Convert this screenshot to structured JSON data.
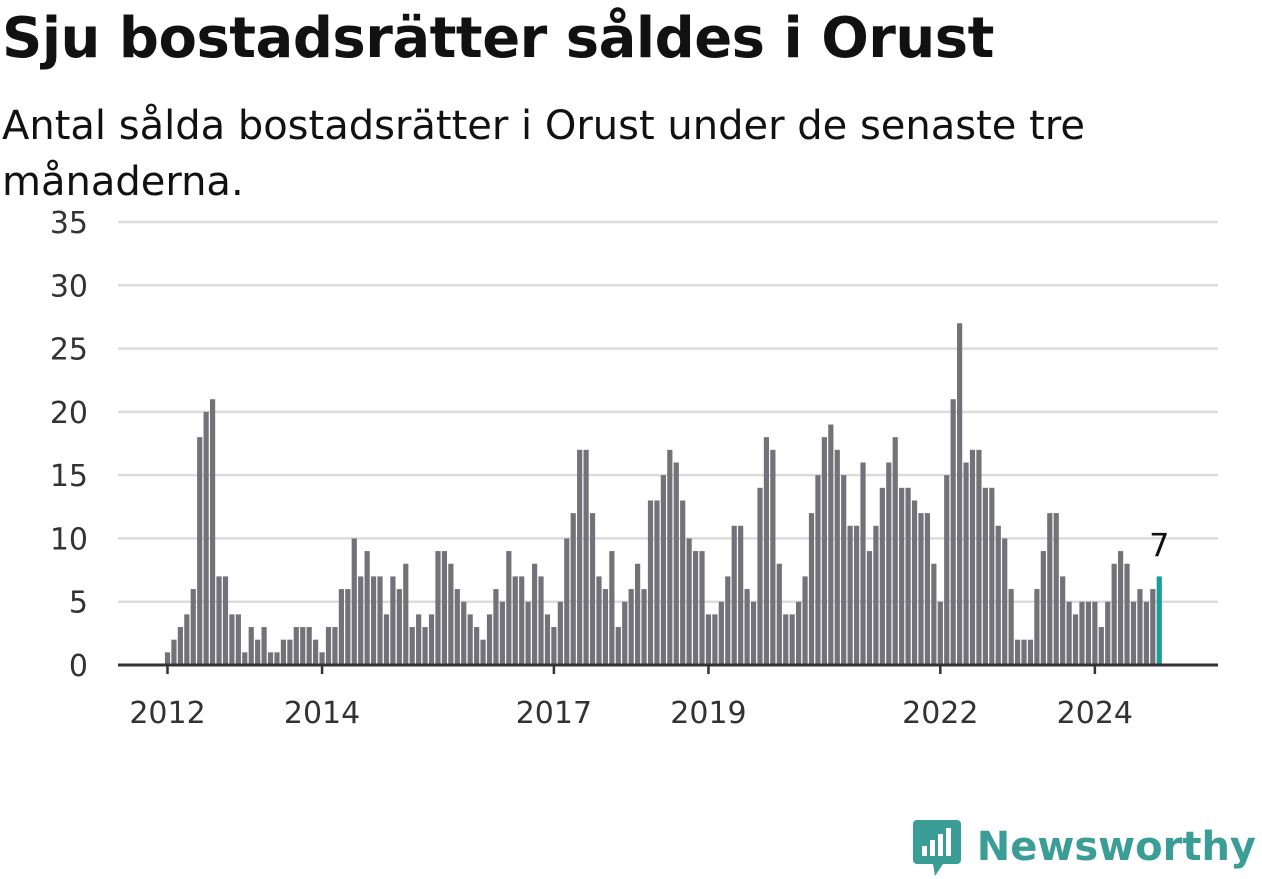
{
  "title": "Sju bostadsrätter såldes i Orust",
  "subtitle": "Antal sålda bostadsrätter i Orust under de senaste tre månaderna.",
  "brand": {
    "name": "Newsworthy",
    "icon": "newsworthy-logo-icon"
  },
  "colors": {
    "bar": "#737278",
    "highlight": "#1a9e96",
    "grid": "#dcdcdc",
    "axis": "#333333",
    "brand": "#3a9d96"
  },
  "chart_data": {
    "type": "bar",
    "start": "2011-10",
    "frequency": "monthly",
    "ylim": [
      0,
      35
    ],
    "yticks": [
      0,
      5,
      10,
      15,
      20,
      25,
      30,
      35
    ],
    "xticks": [
      {
        "label": "2012",
        "date": "2012-01"
      },
      {
        "label": "2014",
        "date": "2014-01"
      },
      {
        "label": "2017",
        "date": "2017-01"
      },
      {
        "label": "2019",
        "date": "2019-01"
      },
      {
        "label": "2022",
        "date": "2022-01"
      },
      {
        "label": "2024",
        "date": "2024-01"
      }
    ],
    "grid": true,
    "values": [
      0,
      0,
      0,
      1,
      2,
      3,
      4,
      6,
      18,
      20,
      21,
      7,
      7,
      4,
      4,
      1,
      3,
      2,
      3,
      1,
      1,
      2,
      2,
      3,
      3,
      3,
      2,
      1,
      3,
      3,
      6,
      6,
      10,
      7,
      9,
      7,
      7,
      4,
      7,
      6,
      8,
      3,
      4,
      3,
      4,
      9,
      9,
      8,
      6,
      5,
      4,
      3,
      2,
      4,
      6,
      5,
      9,
      7,
      7,
      5,
      8,
      7,
      4,
      3,
      5,
      10,
      12,
      17,
      17,
      12,
      7,
      6,
      9,
      3,
      5,
      6,
      8,
      6,
      13,
      13,
      15,
      17,
      16,
      13,
      10,
      9,
      9,
      4,
      4,
      5,
      7,
      11,
      11,
      6,
      5,
      14,
      18,
      17,
      8,
      4,
      4,
      5,
      7,
      12,
      15,
      18,
      19,
      17,
      15,
      11,
      11,
      16,
      9,
      11,
      14,
      16,
      18,
      14,
      14,
      13,
      12,
      12,
      8,
      5,
      15,
      21,
      27,
      16,
      17,
      17,
      14,
      14,
      11,
      10,
      6,
      2,
      2,
      2,
      6,
      9,
      12,
      12,
      7,
      5,
      4,
      5,
      5,
      5,
      3,
      5,
      8,
      9,
      8,
      5,
      6,
      5,
      6,
      7
    ],
    "annotation": {
      "label": "7",
      "target": "last"
    }
  }
}
